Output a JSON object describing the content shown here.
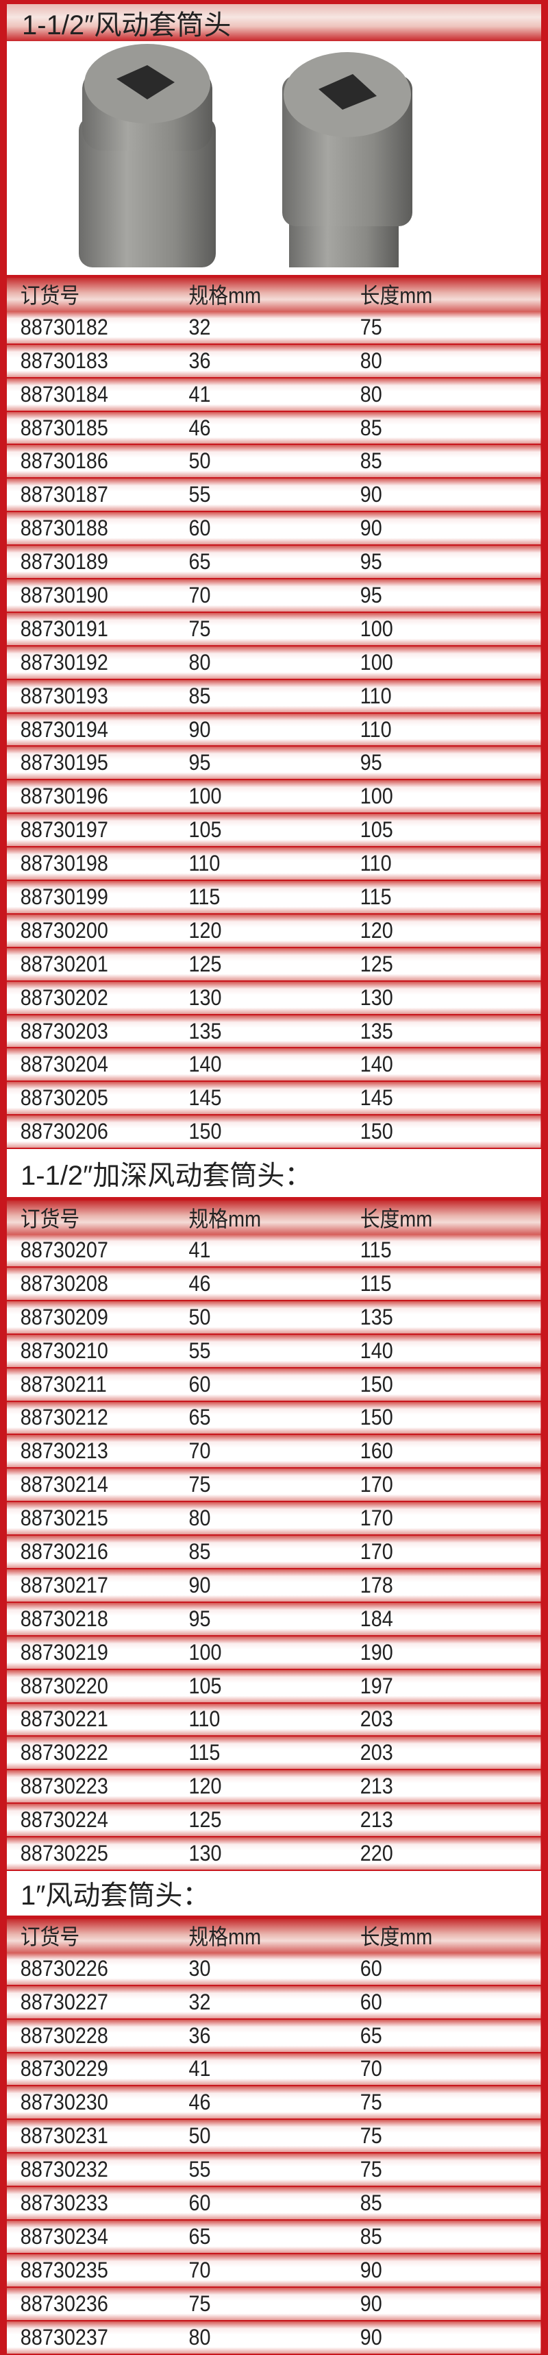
{
  "sections": [
    {
      "title": "1-1/2″风动套筒头",
      "header": [
        "订货号",
        "规格mm",
        "长度mm"
      ],
      "rows": [
        [
          "88730182",
          "32",
          "75"
        ],
        [
          "88730183",
          "36",
          "80"
        ],
        [
          "88730184",
          "41",
          "80"
        ],
        [
          "88730185",
          "46",
          "85"
        ],
        [
          "88730186",
          "50",
          "85"
        ],
        [
          "88730187",
          "55",
          "90"
        ],
        [
          "88730188",
          "60",
          "90"
        ],
        [
          "88730189",
          "65",
          "95"
        ],
        [
          "88730190",
          "70",
          "95"
        ],
        [
          "88730191",
          "75",
          "100"
        ],
        [
          "88730192",
          "80",
          "100"
        ],
        [
          "88730193",
          "85",
          "110"
        ],
        [
          "88730194",
          "90",
          "110"
        ],
        [
          "88730195",
          "95",
          "95"
        ],
        [
          "88730196",
          "100",
          "100"
        ],
        [
          "88730197",
          "105",
          "105"
        ],
        [
          "88730198",
          "110",
          "110"
        ],
        [
          "88730199",
          "115",
          "115"
        ],
        [
          "88730200",
          "120",
          "120"
        ],
        [
          "88730201",
          "125",
          "125"
        ],
        [
          "88730202",
          "130",
          "130"
        ],
        [
          "88730203",
          "135",
          "135"
        ],
        [
          "88730204",
          "140",
          "140"
        ],
        [
          "88730205",
          "145",
          "145"
        ],
        [
          "88730206",
          "150",
          "150"
        ]
      ]
    },
    {
      "title": "1-1/2″加深风动套筒头：",
      "header": [
        "订货号",
        "规格mm",
        "长度mm"
      ],
      "rows": [
        [
          "88730207",
          "41",
          "115"
        ],
        [
          "88730208",
          "46",
          "115"
        ],
        [
          "88730209",
          "50",
          "135"
        ],
        [
          "88730210",
          "55",
          "140"
        ],
        [
          "88730211",
          "60",
          "150"
        ],
        [
          "88730212",
          "65",
          "150"
        ],
        [
          "88730213",
          "70",
          "160"
        ],
        [
          "88730214",
          "75",
          "170"
        ],
        [
          "88730215",
          "80",
          "170"
        ],
        [
          "88730216",
          "85",
          "170"
        ],
        [
          "88730217",
          "90",
          "178"
        ],
        [
          "88730218",
          "95",
          "184"
        ],
        [
          "88730219",
          "100",
          "190"
        ],
        [
          "88730220",
          "105",
          "197"
        ],
        [
          "88730221",
          "110",
          "203"
        ],
        [
          "88730222",
          "115",
          "203"
        ],
        [
          "88730223",
          "120",
          "213"
        ],
        [
          "88730224",
          "125",
          "213"
        ],
        [
          "88730225",
          "130",
          "220"
        ]
      ]
    },
    {
      "title": "1″风动套筒头：",
      "header": [
        "订货号",
        "规格mm",
        "长度mm"
      ],
      "rows": [
        [
          "88730226",
          "30",
          "60"
        ],
        [
          "88730227",
          "32",
          "60"
        ],
        [
          "88730228",
          "36",
          "65"
        ],
        [
          "88730229",
          "41",
          "70"
        ],
        [
          "88730230",
          "46",
          "75"
        ],
        [
          "88730231",
          "50",
          "75"
        ],
        [
          "88730232",
          "55",
          "75"
        ],
        [
          "88730233",
          "60",
          "85"
        ],
        [
          "88730234",
          "65",
          "85"
        ],
        [
          "88730235",
          "70",
          "90"
        ],
        [
          "88730236",
          "75",
          "90"
        ],
        [
          "88730237",
          "80",
          "90"
        ]
      ]
    }
  ]
}
